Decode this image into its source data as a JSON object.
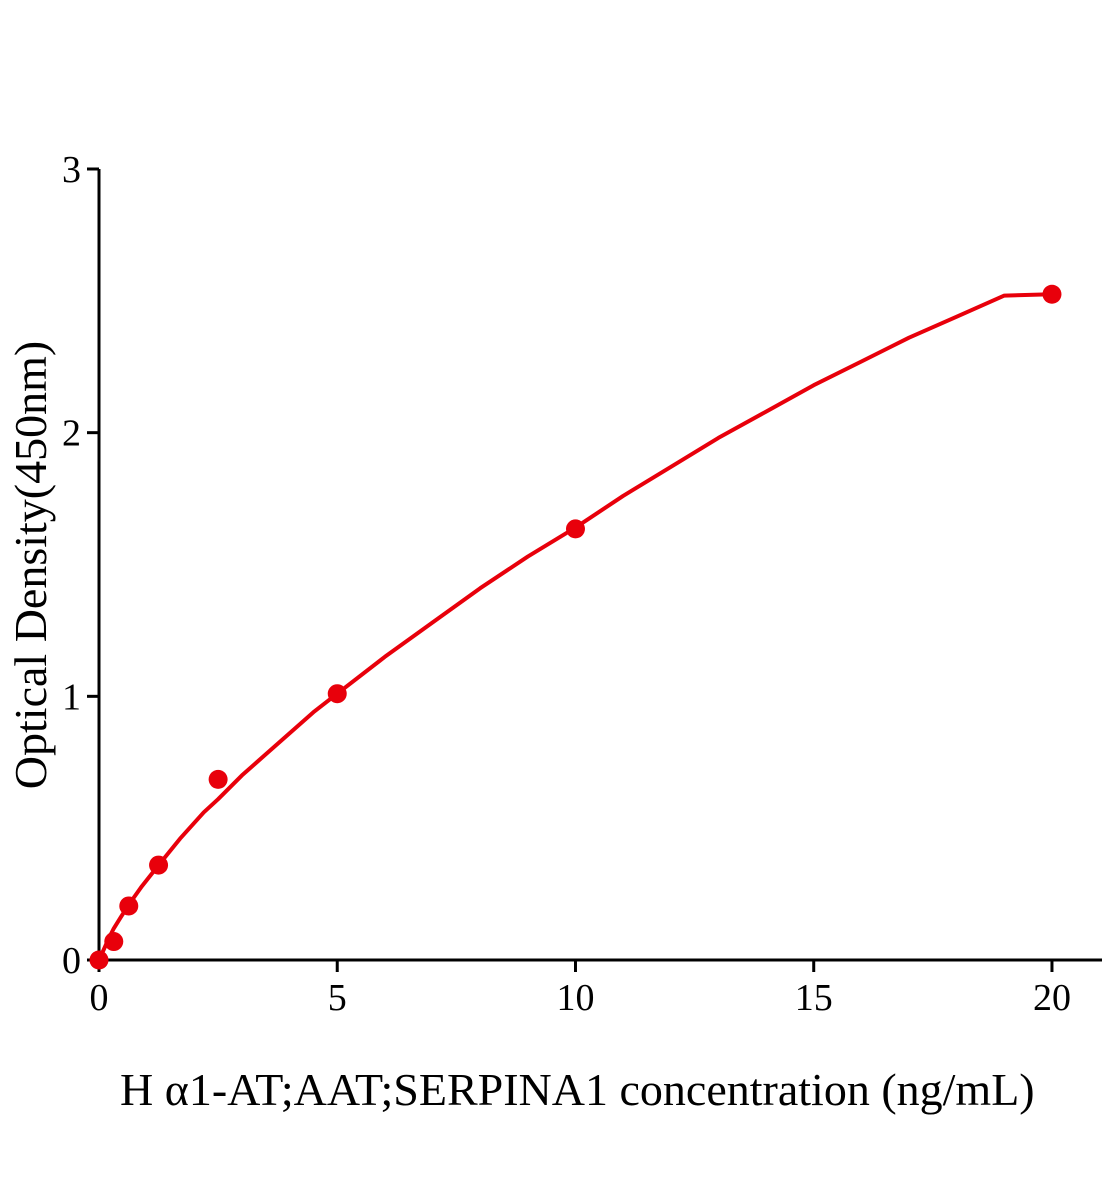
{
  "chart_data": {
    "type": "scatter",
    "xlabel": "H α1-AT;AAT;SERPINA1 concentration (ng/mL)",
    "ylabel": "Optical Density(450nm)",
    "xlim": [
      0,
      21
    ],
    "ylim": [
      0,
      3
    ],
    "x_ticks": [
      "0",
      "5",
      "10",
      "15",
      "20"
    ],
    "y_ticks": [
      "0",
      "1",
      "2",
      "3"
    ],
    "grid": false,
    "colors": {
      "series": "#e8000b",
      "axis": "#000000"
    },
    "series": [
      {
        "points": [
          {
            "x": 0,
            "y": 0.0
          },
          {
            "x": 0.31,
            "y": 0.07
          },
          {
            "x": 0.625,
            "y": 0.205
          },
          {
            "x": 1.25,
            "y": 0.36
          },
          {
            "x": 2.5,
            "y": 0.685
          },
          {
            "x": 5,
            "y": 1.01
          },
          {
            "x": 10,
            "y": 1.635
          },
          {
            "x": 20,
            "y": 2.525
          }
        ],
        "fit_curve": {
          "x": [
            0,
            0.05,
            0.1,
            0.2,
            0.31,
            0.45,
            0.625,
            0.9,
            1.25,
            1.7,
            2.2,
            2.5,
            3,
            3.5,
            4,
            4.5,
            5,
            6,
            7,
            8,
            9,
            10,
            11,
            12,
            13,
            14,
            15,
            16,
            17,
            18,
            19,
            20
          ],
          "y": [
            0.0,
            0.02,
            0.04,
            0.08,
            0.12,
            0.16,
            0.21,
            0.28,
            0.36,
            0.46,
            0.56,
            0.61,
            0.7,
            0.78,
            0.86,
            0.94,
            1.01,
            1.15,
            1.28,
            1.41,
            1.53,
            1.64,
            1.76,
            1.87,
            1.98,
            2.08,
            2.18,
            2.27,
            2.36,
            2.44,
            2.52,
            2.525
          ]
        }
      }
    ]
  }
}
